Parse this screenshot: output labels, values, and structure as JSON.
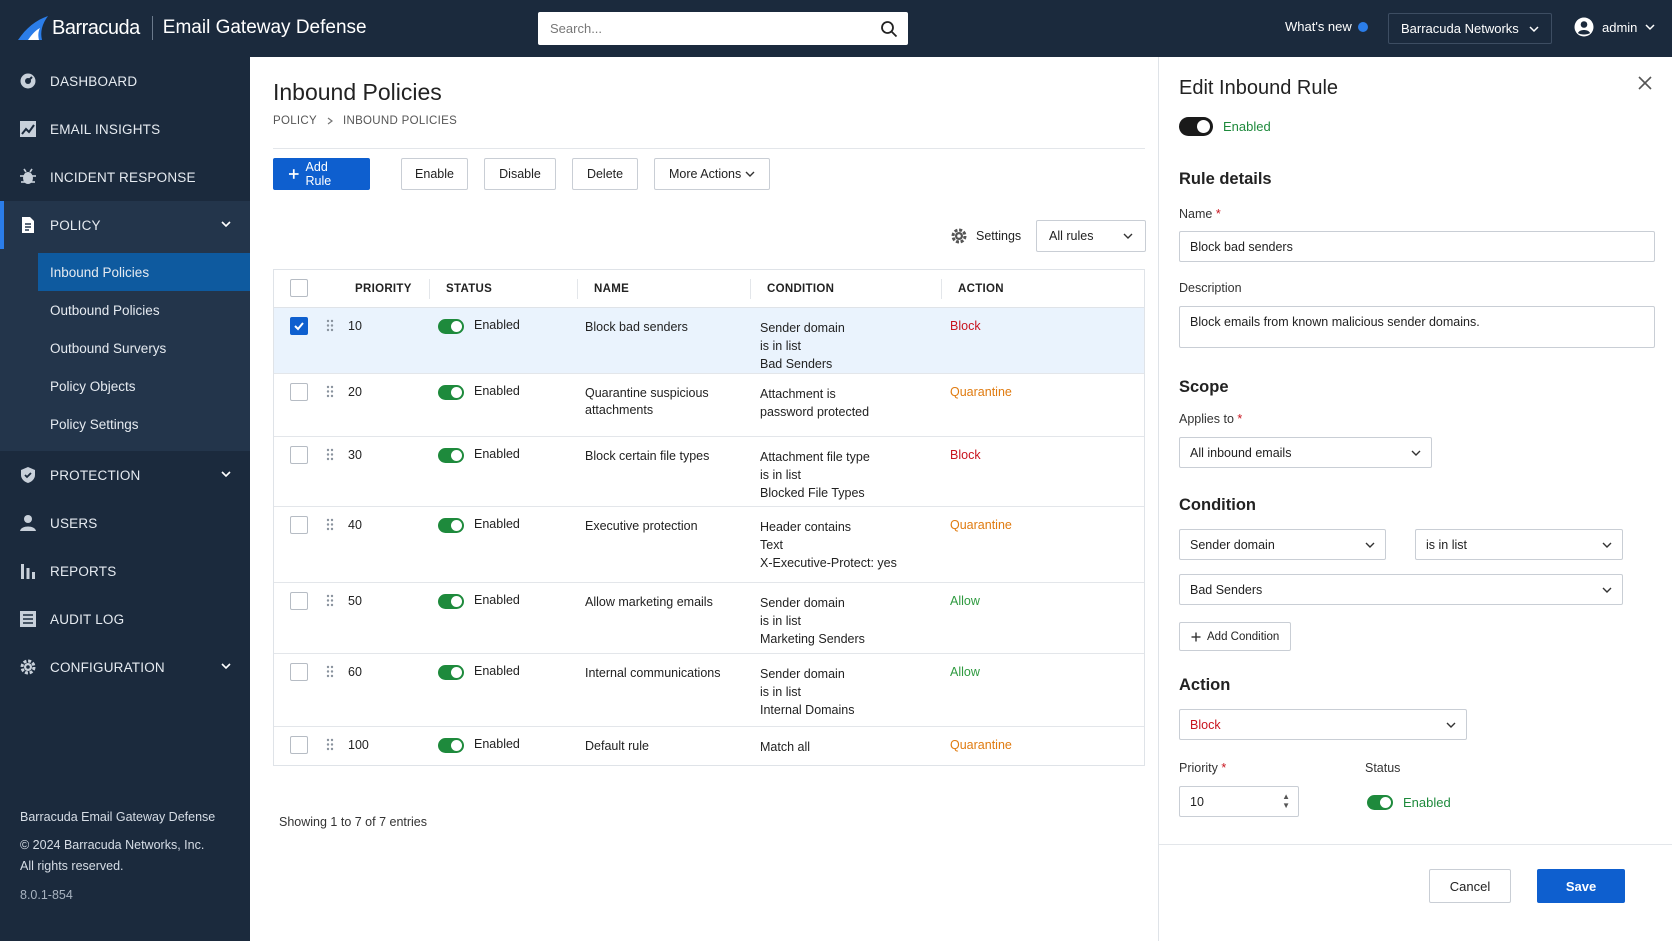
{
  "header": {
    "brand": "Barracuda",
    "product": "Email Gateway Defense",
    "search_placeholder": "Search...",
    "whats_new": "What's new",
    "org": "Barracuda Networks",
    "user": "admin"
  },
  "sidebar": {
    "items": [
      {
        "label": "DASHBOARD",
        "icon": "gauge-icon"
      },
      {
        "label": "EMAIL INSIGHTS",
        "icon": "chart-icon"
      },
      {
        "label": "INCIDENT RESPONSE",
        "icon": "bug-icon"
      },
      {
        "label": "POLICY",
        "icon": "document-icon"
      },
      {
        "label": "PROTECTION",
        "icon": "shield-icon"
      },
      {
        "label": "USERS",
        "icon": "user-icon"
      },
      {
        "label": "REPORTS",
        "icon": "bar-chart-icon"
      },
      {
        "label": "AUDIT LOG",
        "icon": "list-icon"
      },
      {
        "label": "CONFIGURATION",
        "icon": "gear-icon"
      }
    ],
    "policy_sub": [
      "Inbound Policies",
      "Outbound Policies",
      "Outbound Surverys",
      "Policy Objects",
      "Policy Settings"
    ],
    "footer": {
      "product": "Barracuda Email Gateway Defense",
      "copyright": "© 2024 Barracuda Networks, Inc.",
      "rights": "All rights reserved.",
      "version": "8.0.1-854"
    }
  },
  "main": {
    "title": "Inbound Policies",
    "breadcrumb": [
      "POLICY",
      "INBOUND POLICIES"
    ],
    "toolbar": {
      "add_rule": "Add Rule",
      "enable": "Enable",
      "disable": "Disable",
      "delete": "Delete",
      "more_actions": "More Actions"
    },
    "settings": "Settings",
    "filter": "All rules",
    "columns": [
      "PRIORITY",
      "STATUS",
      "NAME",
      "CONDITION",
      "ACTION"
    ],
    "rows": [
      {
        "priority": "10",
        "status": "Enabled",
        "name": [
          "Block bad senders"
        ],
        "condition": [
          "Sender domain",
          "is in list",
          "Bad Senders"
        ],
        "action": "Block",
        "selected": true
      },
      {
        "priority": "20",
        "status": "Enabled",
        "name": [
          "Quarantine suspicious",
          "attachments"
        ],
        "condition": [
          "Attachment is",
          "password protected"
        ],
        "action": "Quarantine"
      },
      {
        "priority": "30",
        "status": "Enabled",
        "name": [
          "Block certain file types"
        ],
        "condition": [
          "Attachment file type",
          "is in list",
          "Blocked File Types"
        ],
        "action": "Block"
      },
      {
        "priority": "40",
        "status": "Enabled",
        "name": [
          "Executive protection"
        ],
        "condition": [
          "Header contains",
          "Text",
          "X-Executive-Protect: yes"
        ],
        "action": "Quarantine"
      },
      {
        "priority": "50",
        "status": "Enabled",
        "name": [
          "Allow marketing emails"
        ],
        "condition": [
          "Sender domain",
          "is in list",
          "Marketing Senders"
        ],
        "action": "Allow"
      },
      {
        "priority": "60",
        "status": "Enabled",
        "name": [
          "Internal communications"
        ],
        "condition": [
          "Sender domain",
          "is in list",
          "Internal Domains"
        ],
        "action": "Allow"
      },
      {
        "priority": "100",
        "status": "Enabled",
        "name": [
          "Default rule"
        ],
        "condition": [
          "Match all"
        ],
        "action": "Quarantine"
      }
    ],
    "showing": "Showing 1 to 7 of 7 entries"
  },
  "panel": {
    "title": "Edit Inbound Rule",
    "enabled_label": "Enabled",
    "rule_details": "Rule details",
    "name_label": "Name",
    "name_value": "Block bad senders",
    "description_label": "Description",
    "description_value": "Block emails from known malicious sender domains.",
    "scope": "Scope",
    "applies_label": "Applies to",
    "applies_value": "All inbound emails",
    "condition": "Condition",
    "cond_field": "Sender domain",
    "cond_op": "is in list",
    "cond_value": "Bad Senders",
    "add_condition": "Add Condition",
    "action": "Action",
    "action_value": "Block",
    "priority_label": "Priority",
    "priority_value": "10",
    "status_label": "Status",
    "status_value": "Enabled",
    "cancel": "Cancel",
    "save": "Save"
  },
  "colors": {
    "nav_bg": "#1b2a3d",
    "primary": "#0e5fcf",
    "block": "#c8141e",
    "quarantine": "#e07b10",
    "allow": "#2e9a3f",
    "enabled": "#1e8a3c"
  }
}
